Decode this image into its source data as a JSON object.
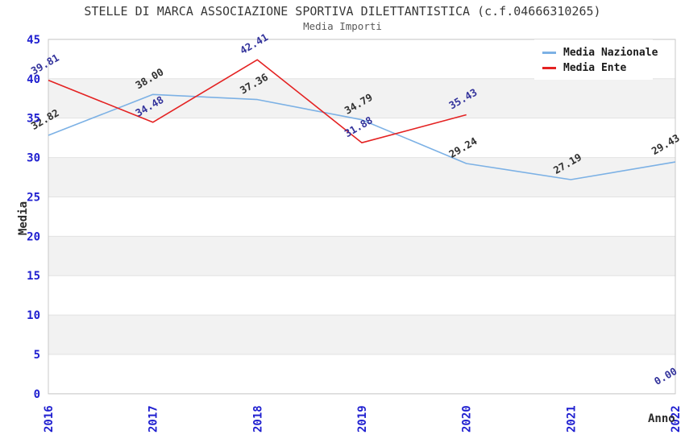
{
  "header": {
    "title": "STELLE DI MARCA ASSOCIAZIONE SPORTIVA DILETTANTISTICA (c.f.04666310265)",
    "subtitle": "Media Importi"
  },
  "chart_data": {
    "type": "line",
    "title": "STELLE DI MARCA ASSOCIAZIONE SPORTIVA DILETTANTISTICA (c.f.04666310265)",
    "subtitle": "Media Importi",
    "xlabel": "Anno",
    "ylabel": "Media",
    "x_categories": [
      "2016",
      "2017",
      "2018",
      "2019",
      "2020",
      "2021",
      "2022"
    ],
    "y_ticks": [
      0,
      5,
      10,
      15,
      20,
      25,
      30,
      35,
      40,
      45
    ],
    "ylim": [
      0,
      45
    ],
    "grid": "alternating-horizontal-bands",
    "legend_position": "top-right",
    "value_label_rotation_deg": -30,
    "series": [
      {
        "name": "Media Nazionale",
        "color": "#7CB1E5",
        "label_color": "#303030",
        "values": [
          32.82,
          38.0,
          37.36,
          34.79,
          29.24,
          27.19,
          29.43
        ]
      },
      {
        "name": "Media Ente",
        "color": "#E42222",
        "label_color": "#32329B",
        "values": [
          39.81,
          34.48,
          42.41,
          31.88,
          35.43,
          null,
          0.0
        ]
      }
    ],
    "colors": {
      "tick_label": "#2020D0",
      "band_gray": "#F2F2F2",
      "band_white": "#FFFFFF",
      "grid_line": "#E2E2E2",
      "plot_border": "#C8C8C8"
    }
  }
}
